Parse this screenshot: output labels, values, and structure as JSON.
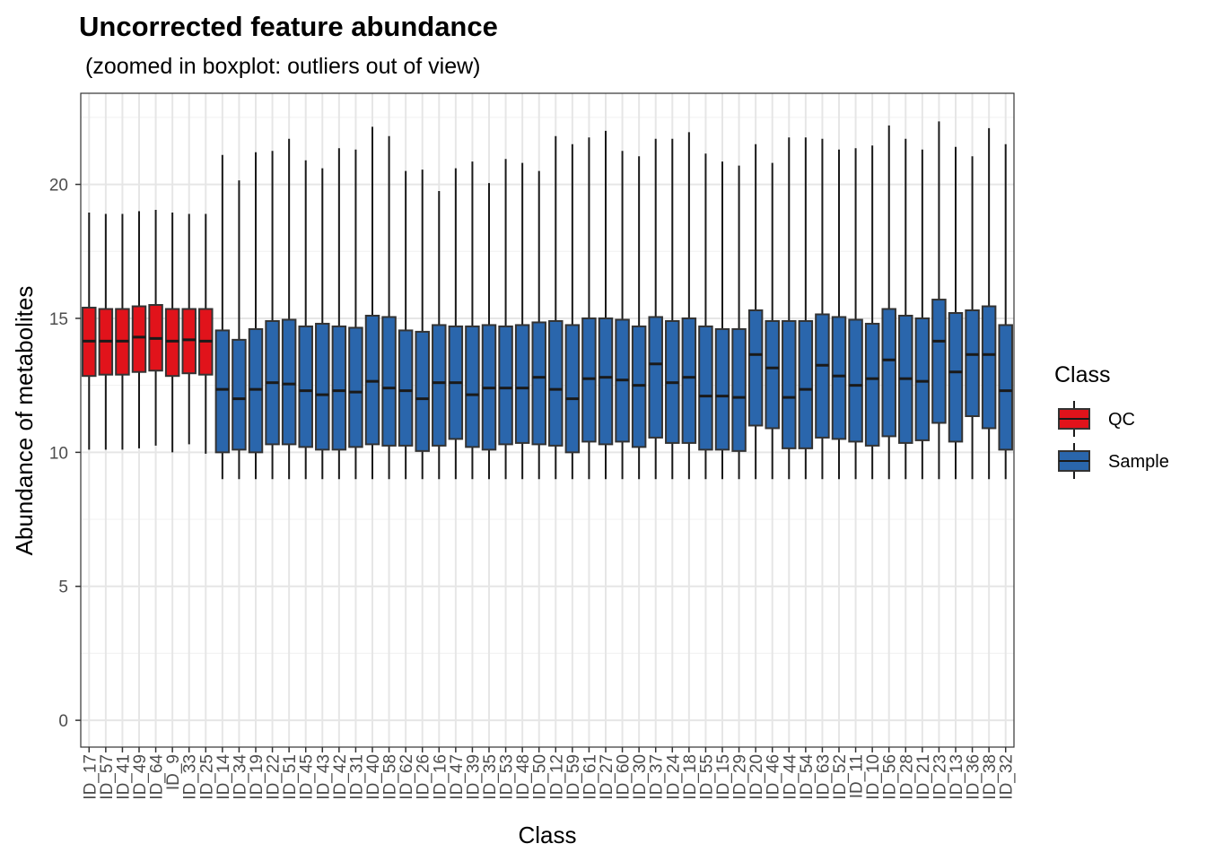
{
  "chart_data": {
    "type": "boxplot",
    "title": "Uncorrected feature abundance",
    "subtitle": "(zoomed in boxplot: outliers out of view)",
    "xlabel": "Class",
    "ylabel": "Abundance of metabolites",
    "ylim": [
      -1,
      23.4
    ],
    "yticks": [
      0,
      5,
      10,
      15,
      20
    ],
    "grid": true,
    "legend": {
      "title": "Class",
      "position": "right",
      "entries": [
        {
          "name": "QC",
          "color": "#e1131b"
        },
        {
          "name": "Sample",
          "color": "#2a66ac"
        }
      ]
    },
    "categories": [
      "ID_17",
      "ID_57",
      "ID_41",
      "ID_49",
      "ID_64",
      "ID_9",
      "ID_33",
      "ID_25",
      "ID_14",
      "ID_34",
      "ID_19",
      "ID_22",
      "ID_51",
      "ID_45",
      "ID_43",
      "ID_42",
      "ID_31",
      "ID_40",
      "ID_58",
      "ID_62",
      "ID_26",
      "ID_16",
      "ID_47",
      "ID_39",
      "ID_35",
      "ID_53",
      "ID_48",
      "ID_50",
      "ID_12",
      "ID_59",
      "ID_61",
      "ID_27",
      "ID_60",
      "ID_30",
      "ID_37",
      "ID_24",
      "ID_18",
      "ID_55",
      "ID_15",
      "ID_29",
      "ID_20",
      "ID_46",
      "ID_44",
      "ID_54",
      "ID_63",
      "ID_52",
      "ID_11",
      "ID_10",
      "ID_56",
      "ID_28",
      "ID_21",
      "ID_23",
      "ID_13",
      "ID_36",
      "ID_38",
      "ID_32"
    ],
    "class": [
      "QC",
      "QC",
      "QC",
      "QC",
      "QC",
      "QC",
      "QC",
      "QC",
      "Sample",
      "Sample",
      "Sample",
      "Sample",
      "Sample",
      "Sample",
      "Sample",
      "Sample",
      "Sample",
      "Sample",
      "Sample",
      "Sample",
      "Sample",
      "Sample",
      "Sample",
      "Sample",
      "Sample",
      "Sample",
      "Sample",
      "Sample",
      "Sample",
      "Sample",
      "Sample",
      "Sample",
      "Sample",
      "Sample",
      "Sample",
      "Sample",
      "Sample",
      "Sample",
      "Sample",
      "Sample",
      "Sample",
      "Sample",
      "Sample",
      "Sample",
      "Sample",
      "Sample",
      "Sample",
      "Sample",
      "Sample",
      "Sample",
      "Sample",
      "Sample",
      "Sample",
      "Sample",
      "Sample",
      "Sample"
    ],
    "whisker_low": [
      10.1,
      10.1,
      10.1,
      10.15,
      10.25,
      10.0,
      10.3,
      9.95,
      9.0,
      9.0,
      9.0,
      9.0,
      9.0,
      9.0,
      9.0,
      9.0,
      9.0,
      9.0,
      9.0,
      9.0,
      9.0,
      9.0,
      9.0,
      9.0,
      9.0,
      9.0,
      9.0,
      9.0,
      9.0,
      9.0,
      9.0,
      9.0,
      9.0,
      9.0,
      9.0,
      9.0,
      9.0,
      9.0,
      9.0,
      9.0,
      9.0,
      9.0,
      9.0,
      9.0,
      9.0,
      9.0,
      9.0,
      9.0,
      9.0,
      9.0,
      9.0,
      9.0,
      9.0,
      9.0,
      9.0,
      9.0
    ],
    "q1": [
      12.85,
      12.9,
      12.9,
      13.0,
      13.05,
      12.85,
      12.95,
      12.9,
      10.0,
      10.1,
      10.0,
      10.3,
      10.3,
      10.2,
      10.1,
      10.1,
      10.2,
      10.3,
      10.25,
      10.25,
      10.05,
      10.25,
      10.5,
      10.2,
      10.1,
      10.3,
      10.35,
      10.3,
      10.25,
      10.0,
      10.4,
      10.3,
      10.4,
      10.2,
      10.55,
      10.35,
      10.35,
      10.1,
      10.1,
      10.05,
      11.0,
      10.9,
      10.15,
      10.15,
      10.55,
      10.5,
      10.4,
      10.25,
      10.6,
      10.35,
      10.45,
      11.1,
      10.4,
      11.35,
      10.9,
      10.1
    ],
    "median": [
      14.15,
      14.15,
      14.15,
      14.3,
      14.25,
      14.15,
      14.2,
      14.15,
      12.35,
      12.0,
      12.35,
      12.6,
      12.55,
      12.3,
      12.15,
      12.3,
      12.25,
      12.65,
      12.4,
      12.3,
      12.0,
      12.6,
      12.6,
      12.15,
      12.4,
      12.4,
      12.4,
      12.8,
      12.35,
      12.0,
      12.75,
      12.8,
      12.7,
      12.5,
      13.3,
      12.6,
      12.8,
      12.1,
      12.1,
      12.05,
      13.65,
      13.15,
      12.05,
      12.35,
      13.25,
      12.85,
      12.5,
      12.75,
      13.45,
      12.75,
      12.65,
      14.15,
      13.0,
      13.65,
      13.65,
      12.3
    ],
    "q3": [
      15.4,
      15.35,
      15.35,
      15.45,
      15.5,
      15.35,
      15.35,
      15.35,
      14.55,
      14.2,
      14.6,
      14.9,
      14.95,
      14.7,
      14.8,
      14.7,
      14.65,
      15.1,
      15.05,
      14.55,
      14.5,
      14.75,
      14.7,
      14.7,
      14.75,
      14.7,
      14.75,
      14.85,
      14.9,
      14.75,
      15.0,
      15.0,
      14.95,
      14.7,
      15.05,
      14.9,
      15.0,
      14.7,
      14.6,
      14.6,
      15.3,
      14.9,
      14.9,
      14.9,
      15.15,
      15.05,
      14.95,
      14.8,
      15.35,
      15.1,
      15.0,
      15.7,
      15.2,
      15.3,
      15.45,
      14.75
    ],
    "whisker_high": [
      18.95,
      18.9,
      18.9,
      19.0,
      19.05,
      18.95,
      18.9,
      18.9,
      21.1,
      20.15,
      21.2,
      21.25,
      21.7,
      20.9,
      20.6,
      21.35,
      21.3,
      22.15,
      21.8,
      20.5,
      20.55,
      19.75,
      20.6,
      20.85,
      20.05,
      20.95,
      20.8,
      20.5,
      21.8,
      21.5,
      21.75,
      22.0,
      21.25,
      21.05,
      21.7,
      21.7,
      21.95,
      21.15,
      20.85,
      20.7,
      21.5,
      20.8,
      21.75,
      21.75,
      21.7,
      21.3,
      21.35,
      21.45,
      22.2,
      21.7,
      21.3,
      22.35,
      21.4,
      21.05,
      22.1,
      21.5
    ]
  }
}
